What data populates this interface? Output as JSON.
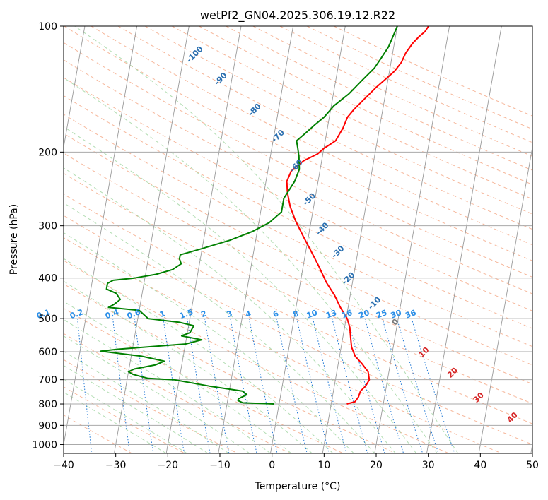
{
  "chart_data": {
    "type": "line",
    "title": "wetPf2_GN04.2025.306.19.12.R22",
    "xlabel": "Temperature (°C)",
    "ylabel": "Pressure (hPa)",
    "xlim": [
      -40,
      50
    ],
    "ylim": [
      1050,
      100
    ],
    "y_scale": "log",
    "x_ticks": [
      -40,
      -30,
      -20,
      -10,
      0,
      10,
      20,
      30,
      40,
      50
    ],
    "x_tick_labels": [
      "−40",
      "−30",
      "−20",
      "−10",
      "0",
      "10",
      "20",
      "30",
      "40",
      "50"
    ],
    "y_ticks": [
      100,
      200,
      300,
      400,
      500,
      600,
      700,
      800,
      900,
      1000
    ],
    "y_tick_labels": [
      "100",
      "200",
      "300",
      "400",
      "500",
      "600",
      "700",
      "800",
      "900",
      "1000"
    ],
    "grid": true,
    "series": [
      {
        "color": "#ff0000",
        "points": [
          [
            13,
            800
          ],
          [
            14.5,
            790
          ],
          [
            15,
            770
          ],
          [
            15.2,
            745
          ],
          [
            16,
            725
          ],
          [
            16.5,
            700
          ],
          [
            16,
            670
          ],
          [
            14.5,
            640
          ],
          [
            13,
            615
          ],
          [
            12,
            585
          ],
          [
            11.5,
            555
          ],
          [
            11,
            525
          ],
          [
            10.2,
            500
          ],
          [
            8.5,
            470
          ],
          [
            7,
            440
          ],
          [
            5,
            410
          ],
          [
            3,
            375
          ],
          [
            1,
            345
          ],
          [
            -1,
            318
          ],
          [
            -3,
            292
          ],
          [
            -4.5,
            270
          ],
          [
            -5.5,
            250
          ],
          [
            -6,
            235
          ],
          [
            -5.5,
            222
          ],
          [
            -3.5,
            210
          ],
          [
            -1,
            202
          ],
          [
            0,
            196
          ],
          [
            2,
            188
          ],
          [
            3,
            175
          ],
          [
            3.5,
            165
          ],
          [
            4.5,
            158
          ],
          [
            6,
            150
          ],
          [
            8,
            140
          ],
          [
            10,
            132
          ],
          [
            11,
            128
          ],
          [
            12,
            122
          ],
          [
            12.5,
            116
          ],
          [
            13.5,
            110
          ],
          [
            14.5,
            106
          ],
          [
            15.5,
            103
          ],
          [
            16,
            100
          ]
        ]
      },
      {
        "color": "#008000",
        "points": [
          [
            -1,
            800
          ],
          [
            -7,
            795
          ],
          [
            -8,
            785
          ],
          [
            -8,
            778
          ],
          [
            -6.5,
            760
          ],
          [
            -7.5,
            745
          ],
          [
            -14,
            725
          ],
          [
            -21,
            700
          ],
          [
            -26,
            695
          ],
          [
            -29,
            680
          ],
          [
            -30,
            670
          ],
          [
            -29,
            660
          ],
          [
            -25,
            645
          ],
          [
            -23.5,
            632
          ],
          [
            -28,
            615
          ],
          [
            -36,
            598
          ],
          [
            -33,
            592
          ],
          [
            -20,
            575
          ],
          [
            -17,
            562
          ],
          [
            -21,
            550
          ],
          [
            -19.5,
            540
          ],
          [
            -19,
            520
          ],
          [
            -22,
            510
          ],
          [
            -28,
            500
          ],
          [
            -30,
            478
          ],
          [
            -36,
            470
          ],
          [
            -35,
            462
          ],
          [
            -34,
            450
          ],
          [
            -35,
            435
          ],
          [
            -37,
            425
          ],
          [
            -37,
            412
          ],
          [
            -36,
            405
          ],
          [
            -32,
            400
          ],
          [
            -28,
            392
          ],
          [
            -25,
            382
          ],
          [
            -23.5,
            370
          ],
          [
            -24,
            360
          ],
          [
            -24,
            352
          ],
          [
            -20,
            340
          ],
          [
            -15,
            325
          ],
          [
            -11,
            310
          ],
          [
            -8,
            295
          ],
          [
            -6,
            278
          ],
          [
            -6,
            258
          ],
          [
            -4.5,
            235
          ],
          [
            -4,
            220
          ],
          [
            -4.5,
            205
          ],
          [
            -5,
            196
          ],
          [
            -5.5,
            188
          ],
          [
            -4,
            180
          ],
          [
            -2.5,
            172
          ],
          [
            -1,
            165
          ],
          [
            0.5,
            155
          ],
          [
            3,
            145
          ],
          [
            5,
            135
          ],
          [
            7,
            126
          ],
          [
            8,
            119
          ],
          [
            9,
            112
          ],
          [
            9.5,
            106
          ],
          [
            10,
            100
          ]
        ]
      }
    ],
    "annotations": {
      "mixing_ratio": [
        "0.1",
        "0.2",
        "0.4",
        "0.6",
        "1",
        "1.5",
        "2",
        "3",
        "4",
        "6",
        "8",
        "10",
        "13",
        "16",
        "20",
        "25",
        "30",
        "36"
      ],
      "dry_adiabat": [
        "-100",
        "-90",
        "-80",
        "-70",
        "-60",
        "-50",
        "-40",
        "-30",
        "-20",
        "-10"
      ],
      "moist_adiabat": [
        "0",
        "10",
        "20",
        "30",
        "40"
      ]
    }
  }
}
